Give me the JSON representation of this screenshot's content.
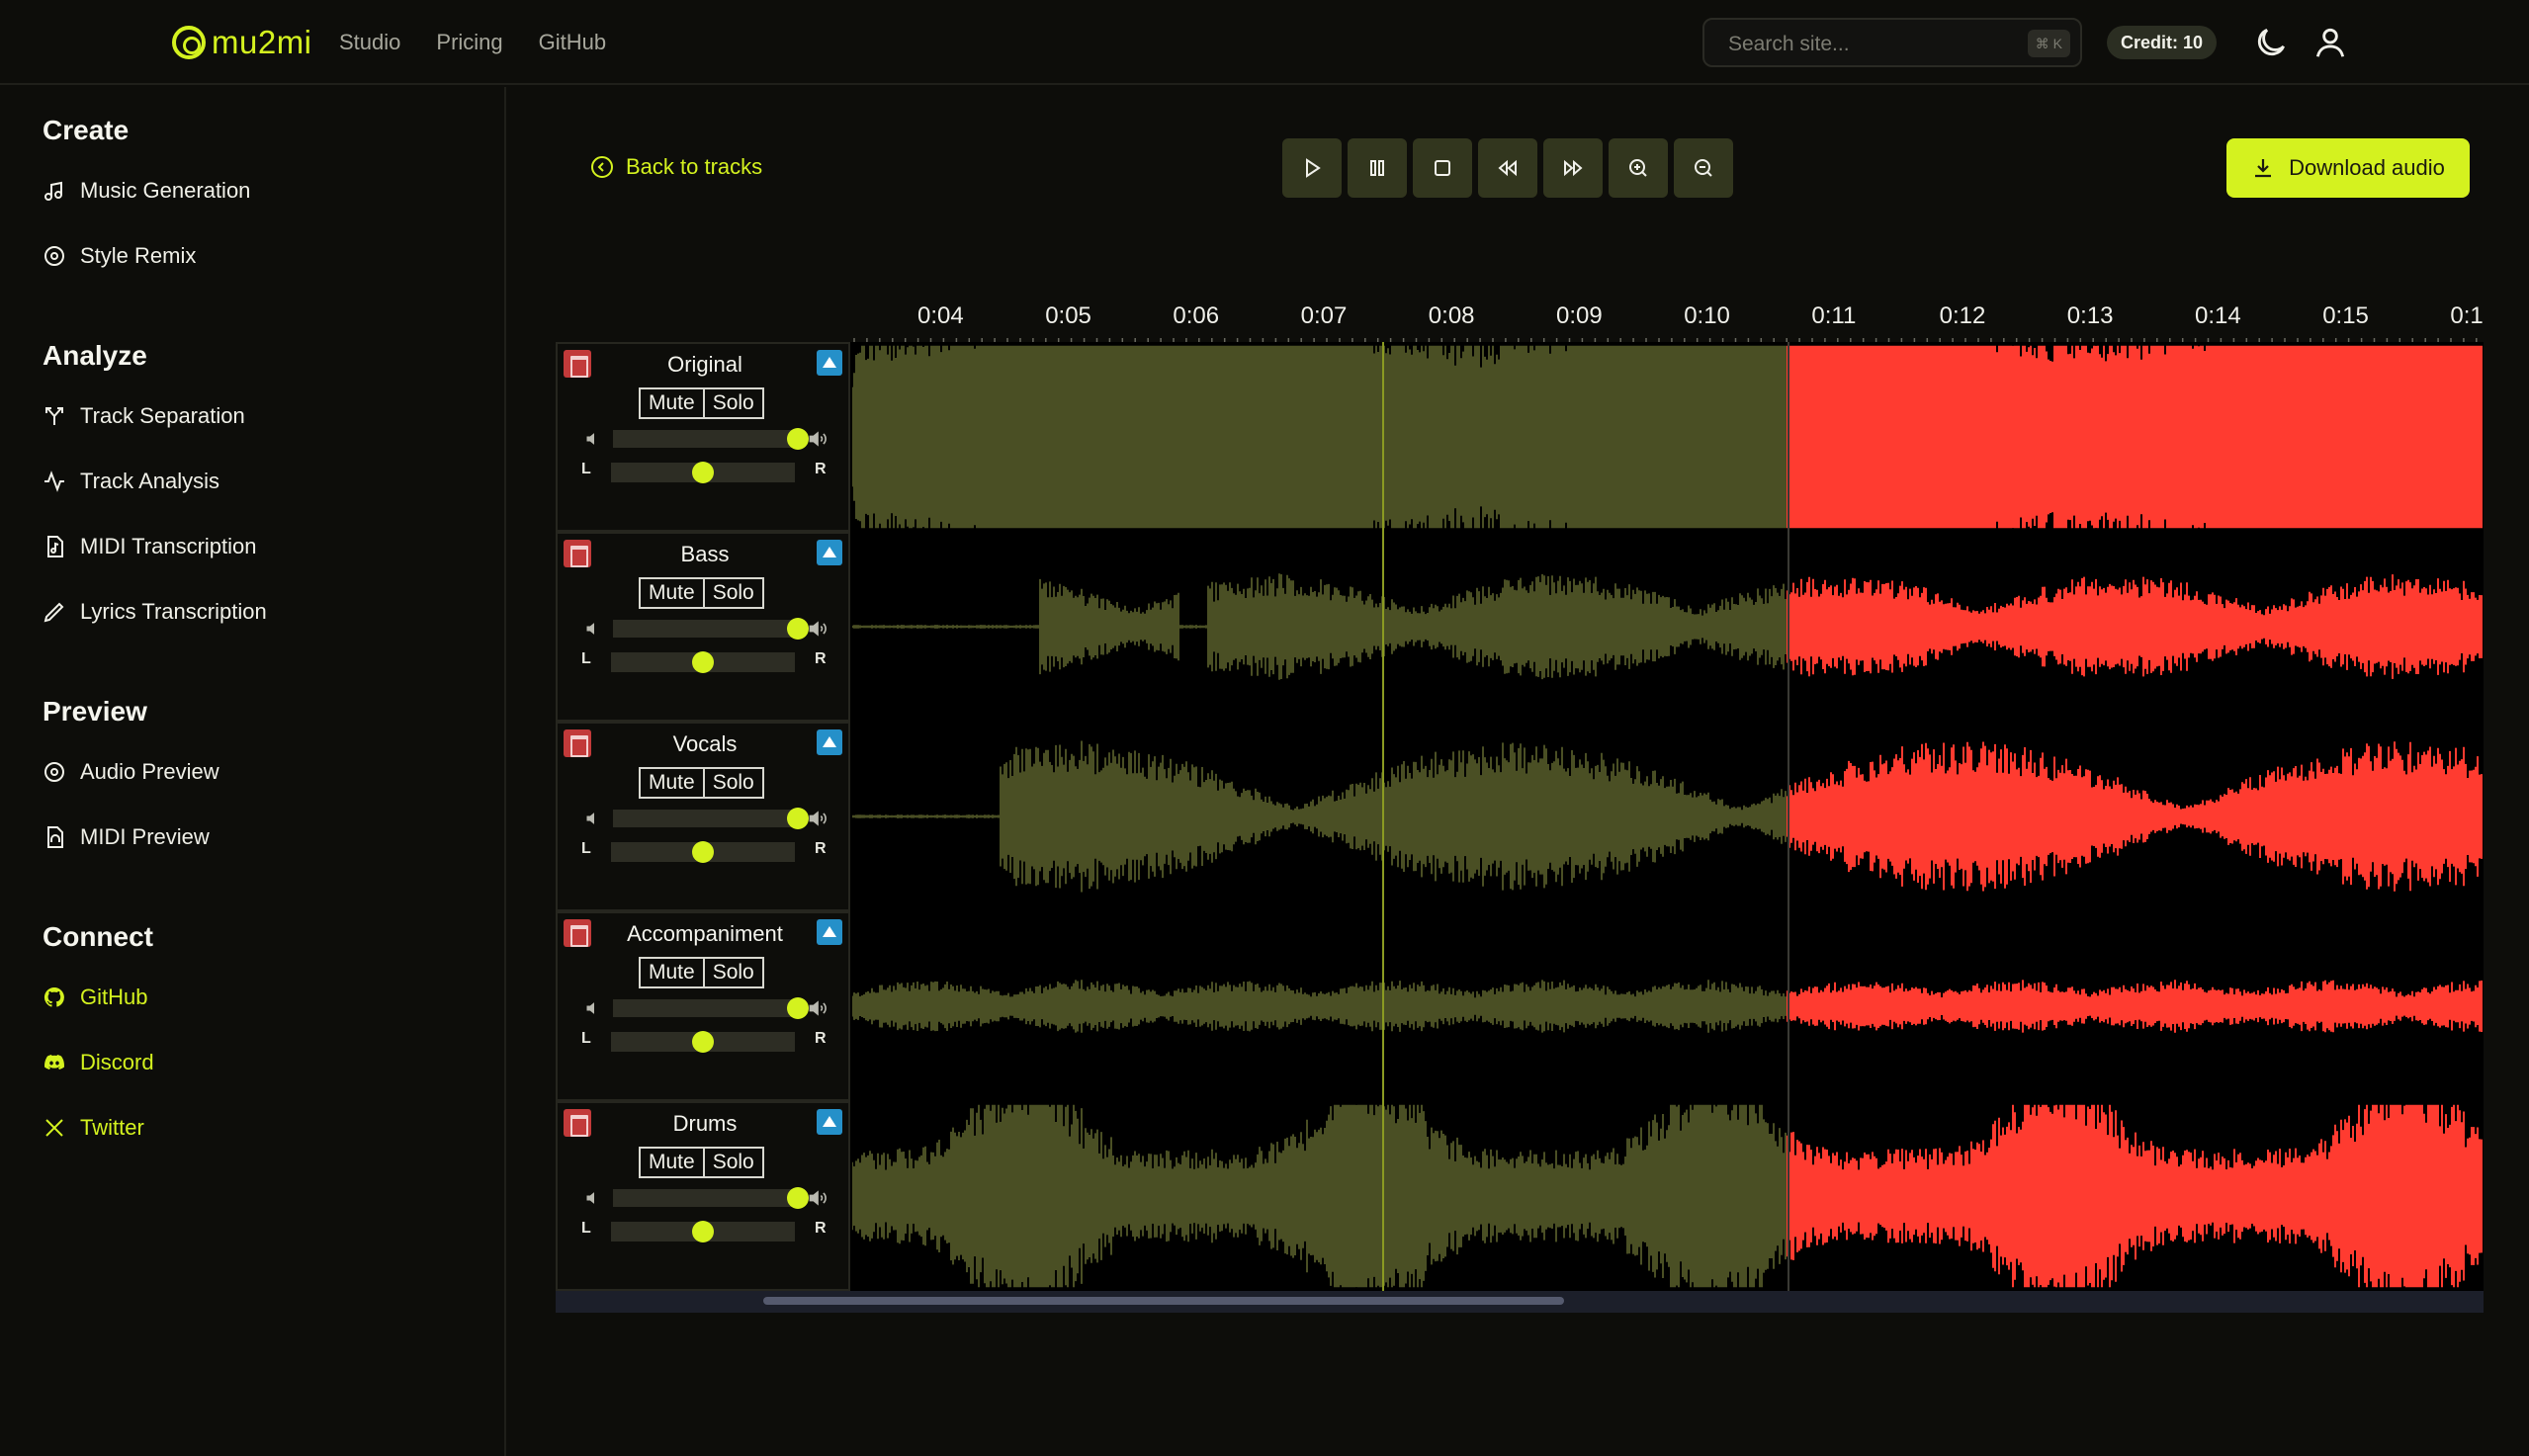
{
  "brand": {
    "name": "mu2mi",
    "accent": "#d4f21f"
  },
  "nav": {
    "links": [
      "Studio",
      "Pricing",
      "GitHub"
    ]
  },
  "search": {
    "placeholder": "Search site...",
    "shortcut": "⌘ K"
  },
  "credit": "Credit: 10",
  "sidebar": {
    "sections": [
      {
        "title": "Create",
        "items": [
          {
            "label": "Music Generation",
            "icon": "music-note-icon"
          },
          {
            "label": "Style Remix",
            "icon": "remix-disc-icon"
          }
        ]
      },
      {
        "title": "Analyze",
        "items": [
          {
            "label": "Track Separation",
            "icon": "split-icon"
          },
          {
            "label": "Track Analysis",
            "icon": "pulse-icon"
          },
          {
            "label": "MIDI Transcription",
            "icon": "midi-file-icon"
          },
          {
            "label": "Lyrics Transcription",
            "icon": "pen-icon"
          }
        ]
      },
      {
        "title": "Preview",
        "items": [
          {
            "label": "Audio Preview",
            "icon": "disc-icon"
          },
          {
            "label": "MIDI Preview",
            "icon": "headphones-file-icon"
          }
        ]
      },
      {
        "title": "Connect",
        "items": [
          {
            "label": "GitHub",
            "icon": "github-icon"
          },
          {
            "label": "Discord",
            "icon": "discord-icon"
          },
          {
            "label": "Twitter",
            "icon": "x-icon"
          }
        ]
      }
    ]
  },
  "back_label": "Back to tracks",
  "download_label": "Download audio",
  "transport": [
    "play-icon",
    "pause-icon",
    "stop-icon",
    "rewind-icon",
    "fast-forward-icon",
    "zoom-in-icon",
    "zoom-out-icon"
  ],
  "timeline": {
    "labels": [
      "0:04",
      "0:05",
      "0:06",
      "0:07",
      "0:08",
      "0:09",
      "0:10",
      "0:11",
      "0:12",
      "0:13",
      "0:14",
      "0:15",
      "0:1"
    ]
  },
  "tracks": [
    {
      "name": "Original",
      "mute": "Mute",
      "solo": "Solo",
      "left": "L",
      "right": "R",
      "volume": 1.0,
      "pan": 0.5
    },
    {
      "name": "Bass",
      "mute": "Mute",
      "solo": "Solo",
      "left": "L",
      "right": "R",
      "volume": 1.0,
      "pan": 0.5
    },
    {
      "name": "Vocals",
      "mute": "Mute",
      "solo": "Solo",
      "left": "L",
      "right": "R",
      "volume": 1.0,
      "pan": 0.5
    },
    {
      "name": "Accompaniment",
      "mute": "Mute",
      "solo": "Solo",
      "left": "L",
      "right": "R",
      "volume": 1.0,
      "pan": 0.5
    },
    {
      "name": "Drums",
      "mute": "Mute",
      "solo": "Solo",
      "left": "L",
      "right": "R",
      "volume": 1.0,
      "pan": 0.5
    }
  ],
  "colors": {
    "played": "#4a4f24",
    "unplayed": "#ff3b30",
    "playhead": "#8a9a22"
  }
}
